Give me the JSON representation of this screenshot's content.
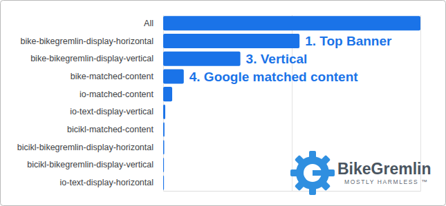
{
  "chart_data": {
    "type": "bar",
    "orientation": "horizontal",
    "categories": [
      "All",
      "bike-bikegremlin-display-horizontal",
      "bike-bikegremlin-display-vertical",
      "bike-matched-content",
      "io-matched-content",
      "io-text-display-vertical",
      "bicikl-matched-content",
      "bicikl-bikegremlin-display-horizontal",
      "bicikl-bikegremlin-display-vertical",
      "io-text-display-horizontal"
    ],
    "values": [
      100,
      53,
      30,
      8,
      3.5,
      0.8,
      0.5,
      0.4,
      0.3,
      0.3
    ],
    "color": "#1a73e8",
    "xlim": [
      0,
      100
    ],
    "xticks": [
      0,
      50,
      100
    ],
    "grid": true,
    "tick_labels": "y",
    "annotations": [
      {
        "text": "1. Top Banner",
        "category": "bike-bikegremlin-display-horizontal"
      },
      {
        "text": "3. Vertical",
        "category": "bike-bikegremlin-display-vertical"
      },
      {
        "text": "4. Google matched content",
        "category": "bike-matched-content"
      }
    ],
    "logo": {
      "text": "BikeGremlin",
      "subtitle": "MOSTLY HARMLESS ™"
    }
  }
}
